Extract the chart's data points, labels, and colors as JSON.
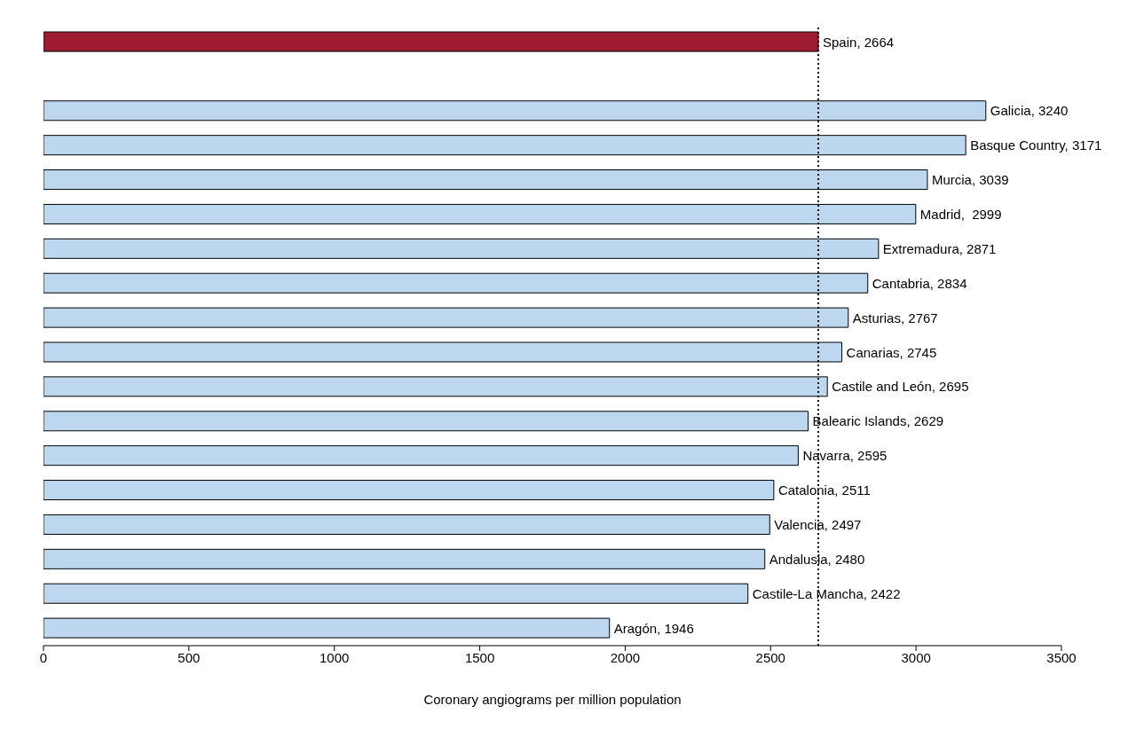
{
  "chart_data": {
    "type": "bar",
    "orientation": "horizontal",
    "xlabel": "Coronary angiograms per million population",
    "categories": [
      null,
      null,
      null,
      null,
      null,
      null,
      null,
      null,
      null,
      null,
      null,
      null,
      null,
      null,
      null,
      null,
      null,
      null
    ],
    "values": [
      2664,
      null,
      3240,
      3171,
      3039,
      2999,
      2871,
      2834,
      2767,
      2745,
      2695,
      2629,
      2595,
      2511,
      2497,
      2480,
      2422,
      1946
    ],
    "colors": [
      "#9e1b32",
      null,
      "#bdd7ee",
      "#bdd7ee",
      "#bdd7ee",
      "#bdd7ee",
      "#bdd7ee",
      "#bdd7ee",
      "#bdd7ee",
      "#bdd7ee",
      "#bdd7ee",
      "#bdd7ee",
      "#bdd7ee",
      "#bdd7ee",
      "#bdd7ee",
      "#bdd7ee",
      "#bdd7ee",
      "#bdd7ee"
    ],
    "value_labels": [
      "Spain, 2664",
      null,
      "Galicia, 3240",
      "Basque Country, 3171",
      "Murcia, 3039",
      "Madrid,  2999",
      "Extremadura, 2871",
      "Cantabria, 2834",
      "Asturias, 2767",
      "Canarias, 2745",
      "Castile and León, 2695",
      "Balearic Islands, 2629",
      "Navarra, 2595",
      "Catalonia, 2511",
      "Valencia, 2497",
      "Andalusia, 2480",
      "Castile-La Mancha, 2422",
      "Aragón, 1946"
    ],
    "xlim": [
      0,
      3500
    ],
    "xticks": [
      0,
      500,
      1000,
      1500,
      2000,
      2500,
      3000,
      3500
    ],
    "ref_lines": [
      {
        "axis": "x",
        "value": 2664,
        "line_style": "dotted",
        "color": "#000000"
      }
    ]
  }
}
